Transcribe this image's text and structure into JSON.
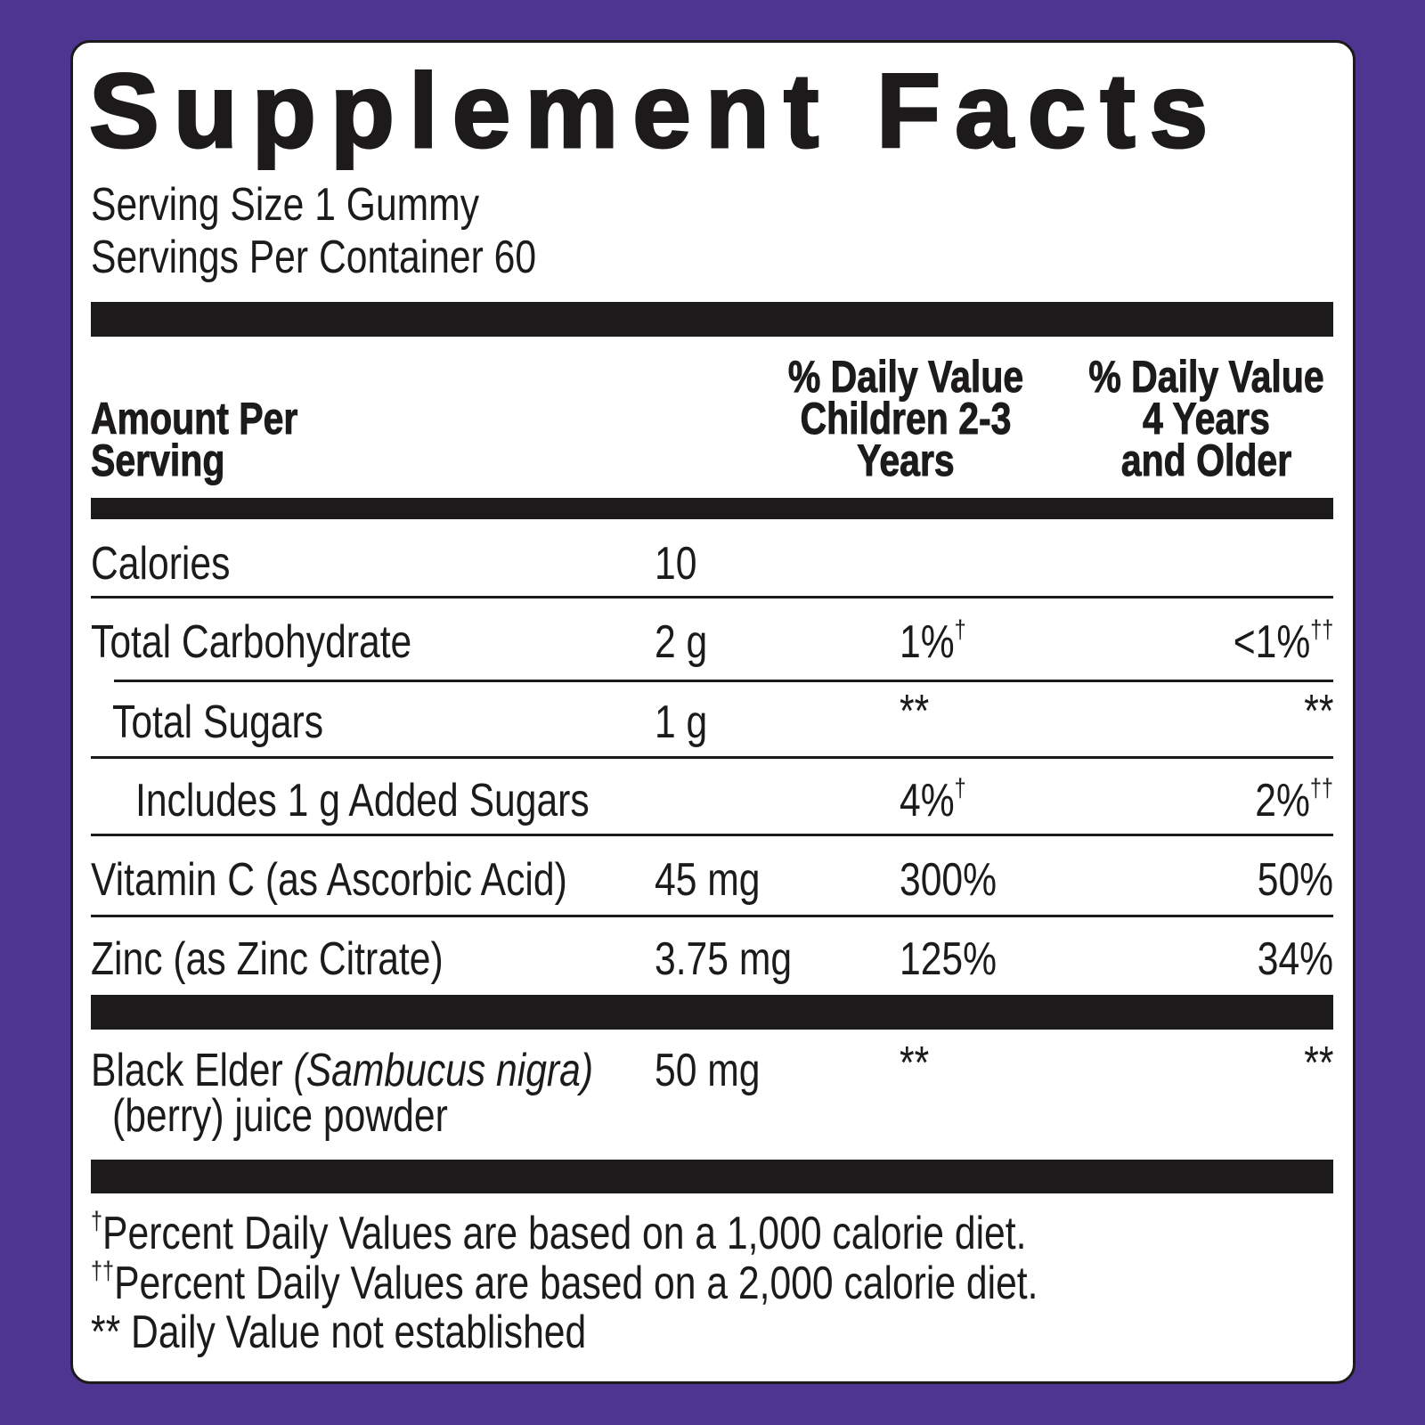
{
  "colors": {
    "background": "#4e3591",
    "panel": "#ffffff",
    "ink": "#1c1a1b"
  },
  "title": "Supplement Facts",
  "serving_size": "Serving Size 1 Gummy",
  "servings_per_container": "Servings Per Container 60",
  "header": {
    "amount_line1": "Amount Per",
    "amount_line2": "Serving",
    "col1": [
      "% Daily Value",
      "Children 2-3",
      "Years"
    ],
    "col2": [
      "% Daily Value",
      "4 Years",
      "and Older"
    ]
  },
  "rows": [
    {
      "name": "Calories",
      "amount": "10",
      "dv1": "",
      "dv1_mark": "",
      "dv2": "",
      "dv2_mark": ""
    },
    {
      "name": "Total Carbohydrate",
      "amount": "2 g",
      "dv1": "1%",
      "dv1_mark": "†",
      "dv2": "<1%",
      "dv2_mark": "††"
    },
    {
      "name": "Total Sugars",
      "amount": "1 g",
      "dv1": "**",
      "dv1_mark": "",
      "dv2": "**",
      "dv2_mark": ""
    },
    {
      "name": "Includes 1 g Added Sugars",
      "amount": "",
      "dv1": "4%",
      "dv1_mark": "†",
      "dv2": "2%",
      "dv2_mark": "††"
    },
    {
      "name": "Vitamin C (as Ascorbic Acid)",
      "amount": "45 mg",
      "dv1": "300%",
      "dv1_mark": "",
      "dv2": "50%",
      "dv2_mark": ""
    },
    {
      "name": "Zinc (as Zinc Citrate)",
      "amount": "3.75 mg",
      "dv1": "125%",
      "dv1_mark": "",
      "dv2": "34%",
      "dv2_mark": ""
    }
  ],
  "elder": {
    "name": "Black Elder ",
    "latin": "(Sambucus nigra)",
    "line2": "(berry) juice powder",
    "amount": "50 mg",
    "dv1": "**",
    "dv2": "**"
  },
  "footnotes": [
    {
      "mark": "†",
      "text": "Percent Daily Values are based on a 1,000 calorie diet."
    },
    {
      "mark": "††",
      "text": "Percent Daily Values are based on a 2,000 calorie diet."
    },
    {
      "mark": "",
      "text": "** Daily Value not established"
    }
  ]
}
